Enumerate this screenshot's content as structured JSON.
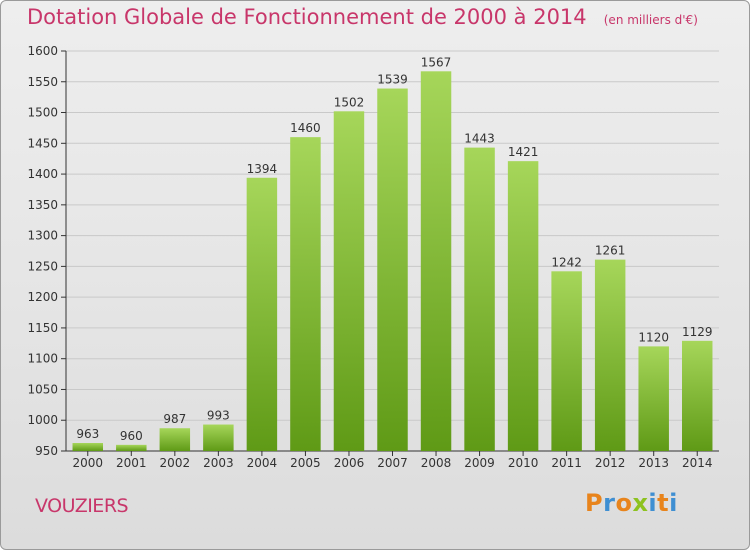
{
  "header": {
    "title": "Dotation Globale de Fonctionnement de 2000 à 2014",
    "unit": "(en milliers d'€)"
  },
  "footer": {
    "commune": "VOUZIERS",
    "logo_text": "Proxiti",
    "logo_colors": [
      "#e8841c",
      "#3f8fd2",
      "#e8841c",
      "#8dc21f",
      "#3f8fd2",
      "#e8841c",
      "#3f8fd2"
    ]
  },
  "colors": {
    "bar_top": "#a6d65a",
    "bar_bottom": "#5f9a16",
    "grid": "#c9c9c9",
    "axis": "#333333",
    "text": "#333333"
  },
  "chart_data": {
    "type": "bar",
    "title": "Dotation Globale de Fonctionnement de 2000 à 2014",
    "xlabel": "",
    "ylabel": "",
    "categories": [
      "2000",
      "2001",
      "2002",
      "2003",
      "2004",
      "2005",
      "2006",
      "2007",
      "2008",
      "2009",
      "2010",
      "2011",
      "2012",
      "2013",
      "2014"
    ],
    "values": [
      963,
      960,
      987,
      993,
      1394,
      1460,
      1502,
      1539,
      1567,
      1443,
      1421,
      1242,
      1261,
      1120,
      1129
    ],
    "ylim": [
      950,
      1600
    ],
    "yticks": [
      950,
      1000,
      1050,
      1100,
      1150,
      1200,
      1250,
      1300,
      1350,
      1400,
      1450,
      1500,
      1550,
      1600
    ],
    "grid": true,
    "data_labels": true
  }
}
